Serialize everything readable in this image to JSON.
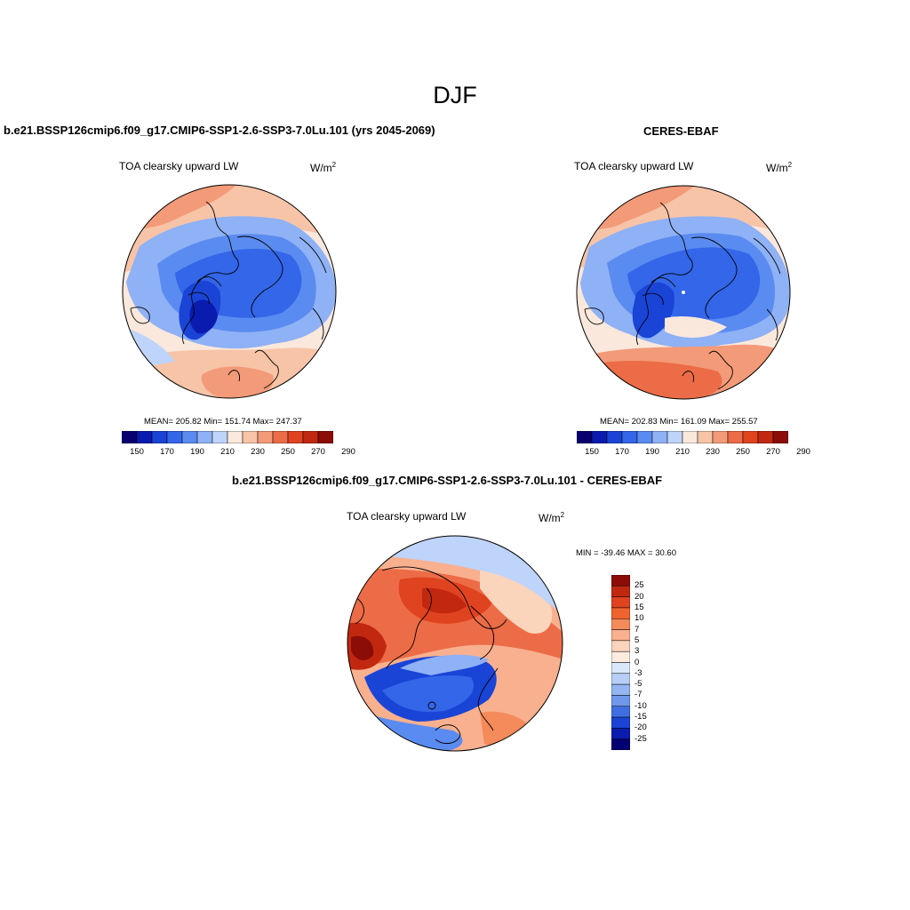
{
  "figure": {
    "title": "DJF"
  },
  "panels": {
    "model": {
      "title": "b.e21.BSSP126cmip6.f09_g17.CMIP6-SSP1-2.6-SSP3-7.0Lu.101 (yrs 2045-2069)",
      "variable": "TOA clearsky upward LW",
      "units_base": "W/m",
      "units_exp": "2",
      "stats": "MEAN= 205.82  Min= 151.74  Max= 247.37",
      "mean": 205.82,
      "min": 151.74,
      "max": 247.37
    },
    "obs": {
      "title": "CERES-EBAF",
      "variable": "TOA clearsky upward LW",
      "units_base": "W/m",
      "units_exp": "2",
      "stats": "MEAN= 202.83  Min= 161.09  Max= 255.57",
      "mean": 202.83,
      "min": 161.09,
      "max": 255.57
    },
    "diff": {
      "title": "b.e21.BSSP126cmip6.f09_g17.CMIP6-SSP1-2.6-SSP3-7.0Lu.101 - CERES-EBAF",
      "variable": "TOA clearsky upward LW",
      "units_base": "W/m",
      "units_exp": "2",
      "stats": "MIN = -39.46 MAX =  30.60",
      "min": -39.46,
      "max": 30.6
    }
  },
  "colorbars": {
    "absolute": {
      "colors": [
        "#08006f",
        "#0a1bb0",
        "#1a44d6",
        "#3366e8",
        "#5a8bf0",
        "#8fb1f5",
        "#bfd4fa",
        "#fbe8dc",
        "#f7c4a8",
        "#f39a78",
        "#ec6c47",
        "#e0431f",
        "#c22810",
        "#8c0c08"
      ],
      "tick_labels": [
        "150",
        "170",
        "190",
        "210",
        "230",
        "250",
        "270",
        "290"
      ]
    },
    "difference": {
      "colors": [
        "#8c0c08",
        "#c22810",
        "#e0431f",
        "#f0622e",
        "#f58a5a",
        "#f9b08e",
        "#fbd4bc",
        "#fdebe0",
        "#d9e7fb",
        "#b7cff7",
        "#93b5f2",
        "#6f97ec",
        "#3f6fe2",
        "#1a44d6",
        "#0a1bb0",
        "#030073"
      ],
      "tick_labels": [
        "25",
        "20",
        "15",
        "10",
        "7",
        "5",
        "3",
        "0",
        "-3",
        "-5",
        "-7",
        "-10",
        "-15",
        "-20",
        "-25"
      ]
    }
  },
  "maps": {
    "projection": "north-polar-stereographic",
    "model_field": {
      "colors": {
        "ocean_warm": "#f4a482",
        "ocean_mid": "#b9d0f5",
        "land_cold": "#3d6de0",
        "land_coldest": "#1a3fc4"
      }
    },
    "obs_field": {
      "colors": {
        "ocean_warm": "#f4a482",
        "ocean_mid": "#b9d0f5",
        "land_cold": "#3d6de0",
        "land_coldest": "#1a3fc4"
      }
    },
    "diff_field": {
      "colors": {
        "positive": "#ec5a2c",
        "strong_positive": "#b82010",
        "negative": "#2d57d8",
        "weak": "#fbd4bc"
      }
    }
  }
}
